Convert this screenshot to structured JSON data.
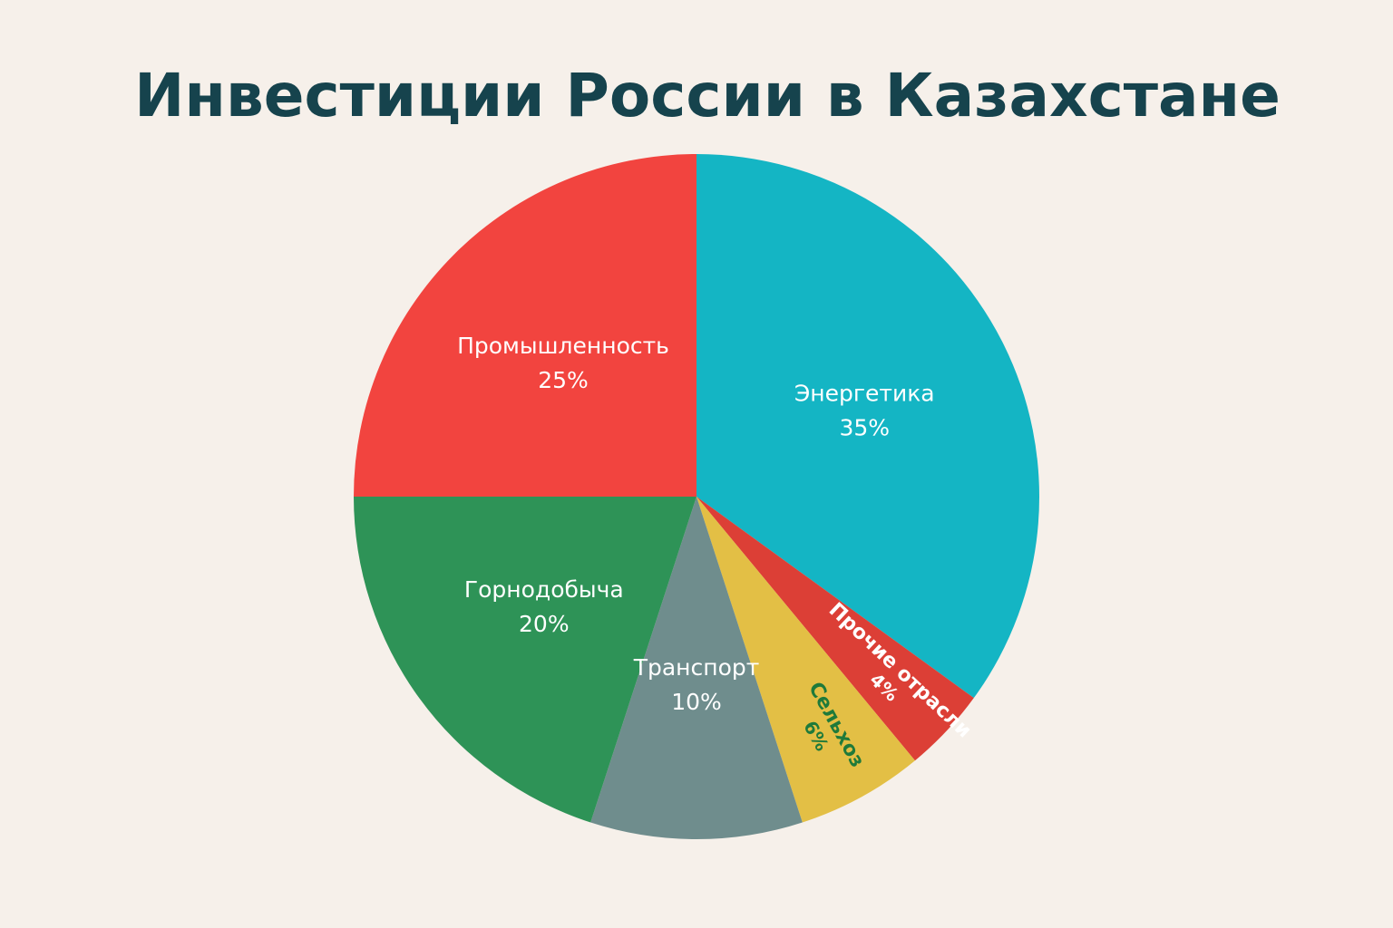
{
  "chart_data": {
    "type": "pie",
    "title": "Инвестиции России в Казахстане",
    "categories": [
      "Энергетика",
      "Прочие отрасли",
      "Сельхоз",
      "Транспорт",
      "Горнодобыча",
      "Промышленность"
    ],
    "values": [
      35,
      4,
      6,
      10,
      20,
      25
    ],
    "value_labels": [
      "35%",
      "4%",
      "6%",
      "10%",
      "20%",
      "25%"
    ],
    "colors": [
      "#14b5c4",
      "#dc3f36",
      "#e3bf45",
      "#6f8d8d",
      "#2e9357",
      "#f2443f"
    ],
    "label_colors": [
      "#ffffff",
      "#ffffff",
      "#1f7a3a",
      "#ffffff",
      "#ffffff",
      "#ffffff"
    ]
  }
}
